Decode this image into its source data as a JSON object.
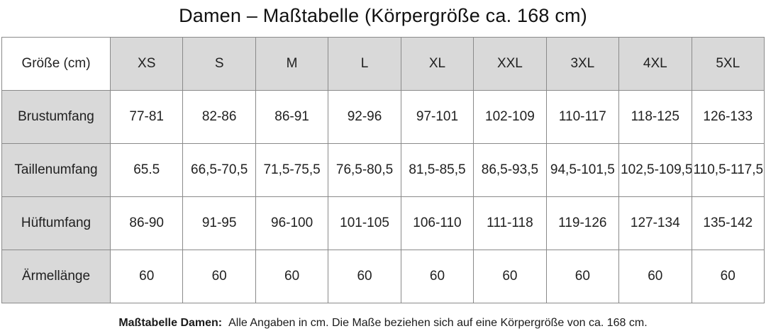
{
  "page_title": "Damen – Maßtabelle (Körpergröße ca. 168 cm)",
  "footnote": {
    "lead": "Maßtabelle Damen:",
    "text": "Alle Angaben in cm. Die Maße beziehen sich auf eine Körpergröße von ca. 168 cm."
  },
  "colors": {
    "cell_fill_gray": "#d9d9d9",
    "cell_fill_white": "#ffffff",
    "border": "#8a8a8a",
    "text": "#212121",
    "title_text": "#111111"
  },
  "chart_data": {
    "type": "table",
    "title": "Damen – Maßtabelle (Körpergröße ca. 168 cm)",
    "corner_label": "Größe (cm)",
    "size_columns": [
      "XS",
      "S",
      "M",
      "L",
      "XL",
      "XXL",
      "3XL",
      "4XL",
      "5XL"
    ],
    "rows": [
      {
        "label": "Brustumfang",
        "values": [
          "77-81",
          "82-86",
          "86-91",
          "92-96",
          "97-101",
          "102-109",
          "110-117",
          "118-125",
          "126-133"
        ]
      },
      {
        "label": "Taillenumfang",
        "values": [
          "65.5",
          "66,5-70,5",
          "71,5-75,5",
          "76,5-80,5",
          "81,5-85,5",
          "86,5-93,5",
          "94,5-101,5",
          "102,5-109,5",
          "110,5-117,5"
        ]
      },
      {
        "label": "Hüftumfang",
        "values": [
          "86-90",
          "91-95",
          "96-100",
          "101-105",
          "106-110",
          "111-118",
          "119-126",
          "127-134",
          "135-142"
        ]
      },
      {
        "label": "Ärmellänge",
        "values": [
          "60",
          "60",
          "60",
          "60",
          "60",
          "60",
          "60",
          "60",
          "60"
        ]
      }
    ],
    "footnote": "Maßtabelle Damen: Alle Angaben in cm. Die Maße beziehen sich auf eine Körpergröße von ca. 168 cm."
  }
}
